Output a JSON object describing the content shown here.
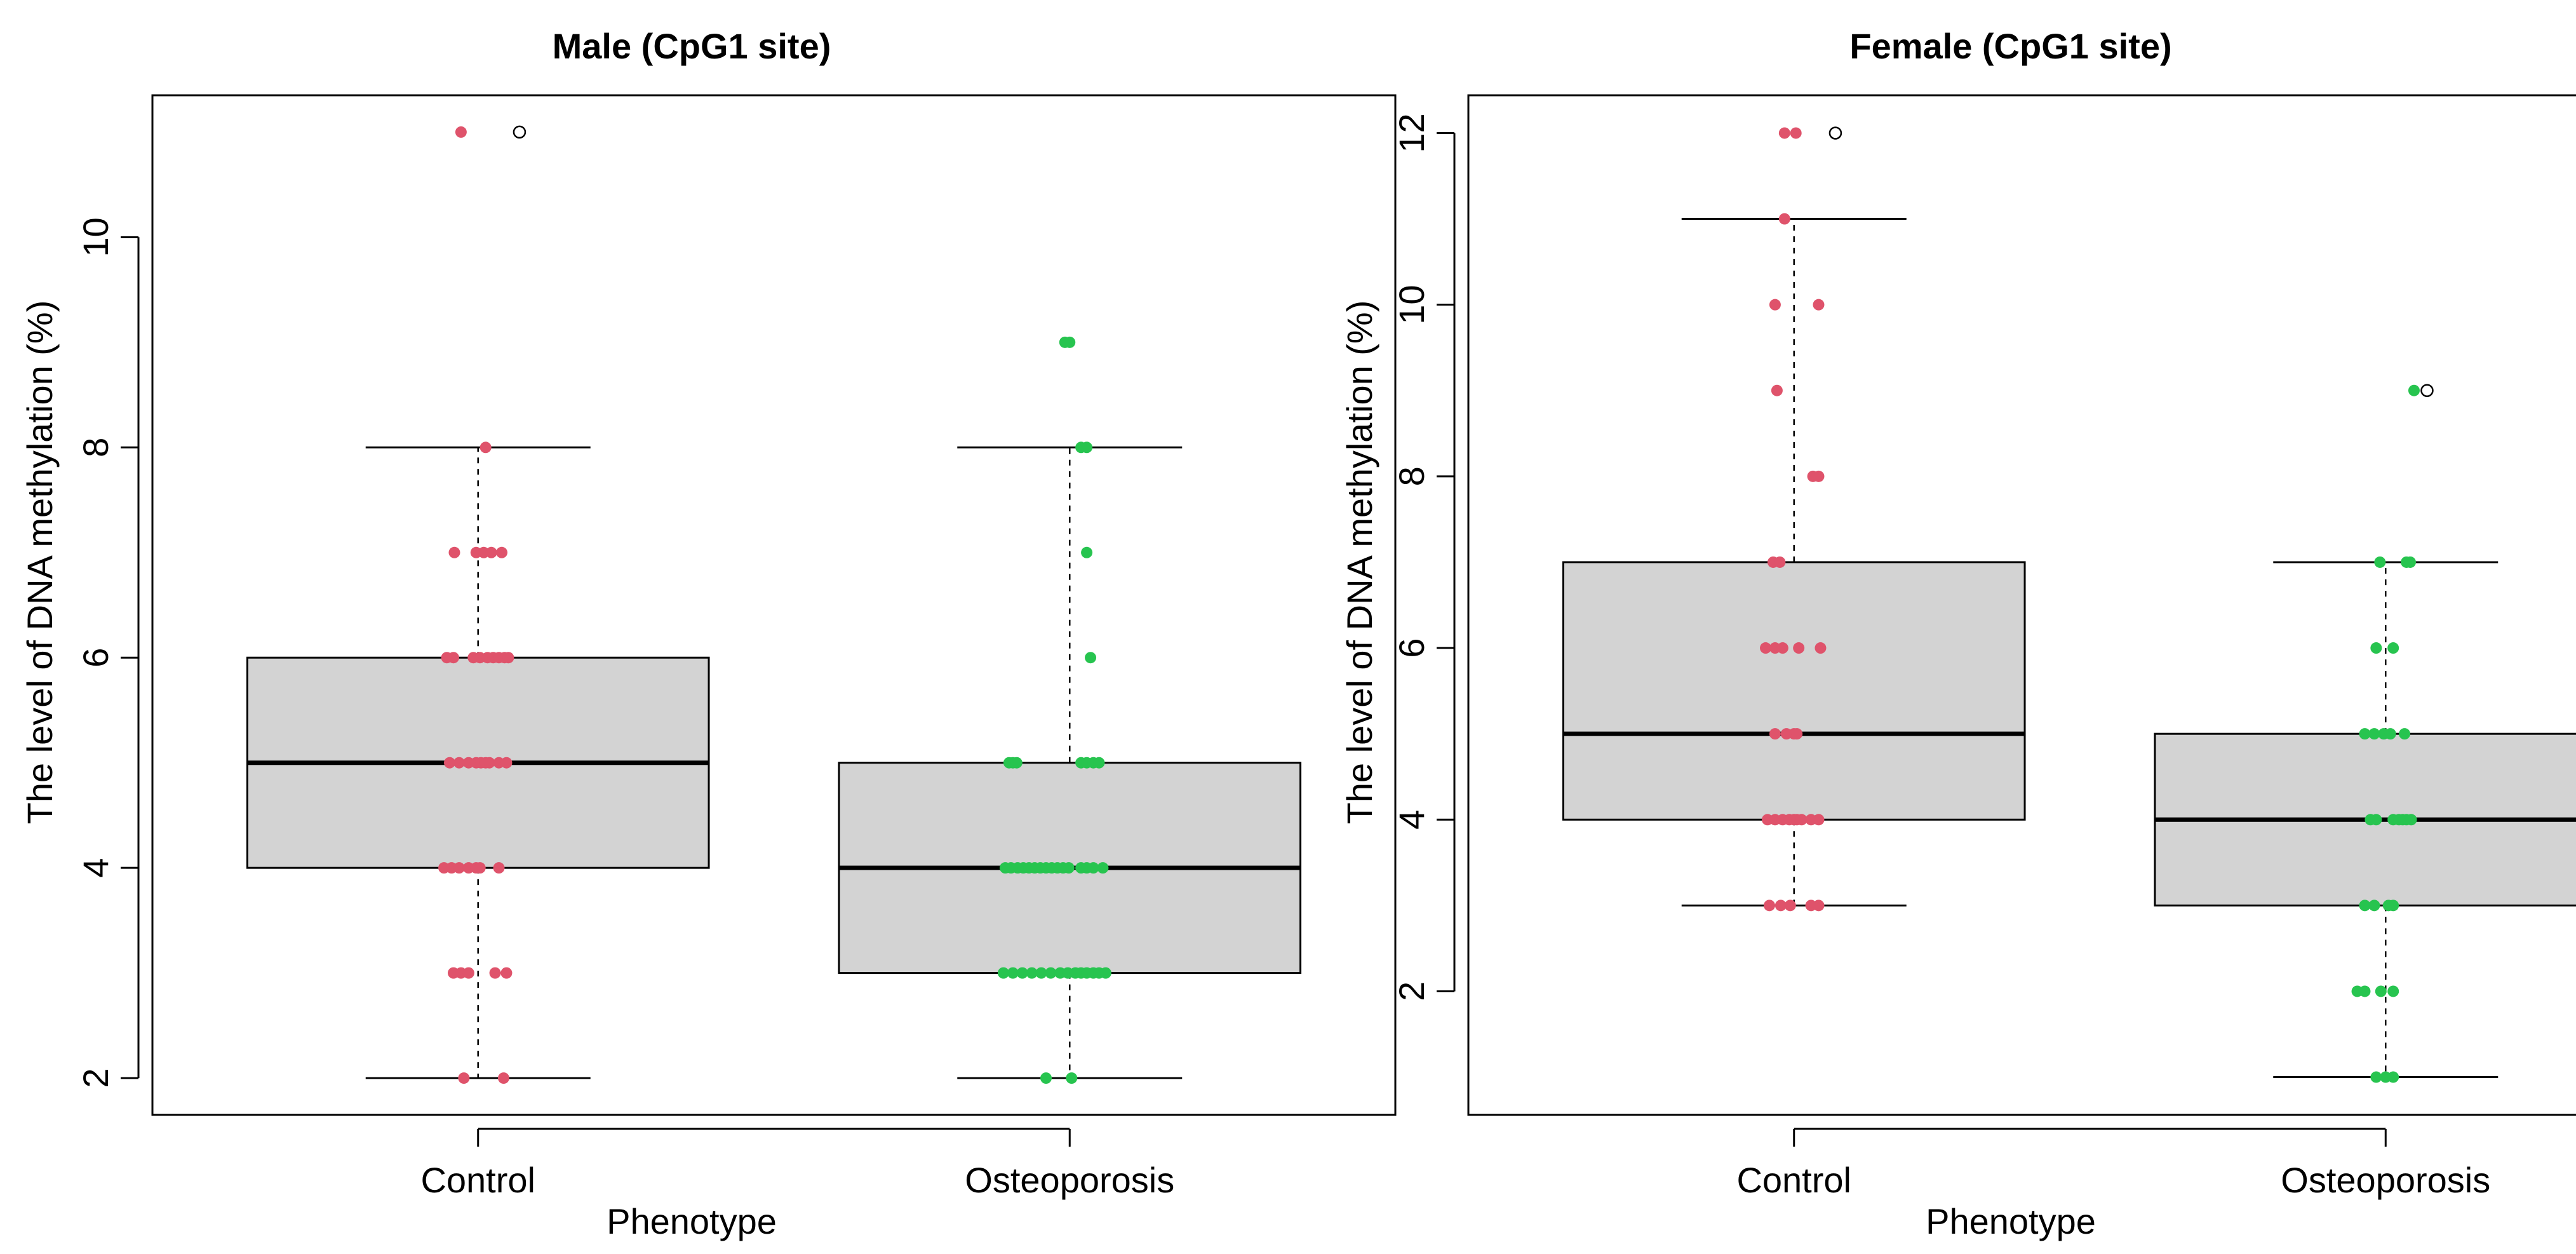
{
  "figure": {
    "background": "#ffffff"
  },
  "colors": {
    "control": "#df536b",
    "osteoporosis": "#27c44f",
    "box_fill": "#d3d3d3",
    "box_stroke": "#000000",
    "median": "#000000",
    "outlier_stroke": "#000000"
  },
  "chart_data": [
    {
      "type": "box",
      "title": "Male (CpG1 site)",
      "xlabel": "Phenotype",
      "ylabel": "The level of DNA methylation (%)",
      "categories": [
        "Control",
        "Osteoporosis"
      ],
      "ylim": [
        1.65,
        11.35
      ],
      "yticks": [
        2,
        4,
        6,
        8,
        10
      ],
      "boxes": [
        {
          "category": "Control",
          "q1": 4,
          "median": 5,
          "q3": 6,
          "whisker_low": 2,
          "whisker_high": 8,
          "outliers": [
            11
          ]
        },
        {
          "category": "Osteoporosis",
          "q1": 3,
          "median": 4,
          "q3": 5,
          "whisker_low": 2,
          "whisker_high": 8,
          "outliers": []
        }
      ],
      "points": [
        {
          "category": "Control",
          "values": [
            11,
            8,
            7,
            7,
            7,
            7,
            7,
            6,
            6,
            6,
            6,
            6,
            6,
            6,
            6,
            6,
            5,
            5,
            5,
            5,
            5,
            5,
            5,
            5,
            5,
            4,
            4,
            4,
            4,
            4,
            4,
            4,
            3,
            3,
            3,
            3,
            3,
            2,
            2
          ],
          "offsets": [
            -0.18,
            0.08,
            -0.25,
            -0.02,
            0.06,
            0.14,
            0.25,
            -0.33,
            -0.26,
            -0.05,
            0.02,
            0.1,
            0.16,
            0.22,
            0.28,
            0.32,
            -0.3,
            -0.2,
            -0.1,
            -0.02,
            0.03,
            0.08,
            0.12,
            0.22,
            0.3,
            -0.36,
            -0.28,
            -0.2,
            -0.1,
            -0.02,
            0.02,
            0.22,
            -0.26,
            -0.18,
            -0.1,
            0.18,
            0.3,
            -0.15,
            0.27
          ]
        },
        {
          "category": "Osteoporosis",
          "values": [
            9,
            9,
            8,
            8,
            7,
            6,
            5,
            5,
            5,
            5,
            5,
            5,
            5,
            4,
            4,
            4,
            4,
            4,
            4,
            4,
            4,
            4,
            4,
            4,
            4,
            4,
            4,
            4,
            4,
            3,
            3,
            3,
            3,
            3,
            3,
            3,
            3,
            3,
            3,
            3,
            3,
            3,
            3,
            2,
            2
          ],
          "offsets": [
            -0.05,
            0.0,
            0.12,
            0.18,
            0.18,
            0.22,
            -0.64,
            -0.6,
            -0.56,
            0.12,
            0.18,
            0.25,
            0.31,
            -0.68,
            -0.62,
            -0.55,
            -0.49,
            -0.43,
            -0.37,
            -0.31,
            -0.25,
            -0.19,
            -0.13,
            -0.07,
            -0.01,
            0.12,
            0.18,
            0.25,
            0.35,
            -0.7,
            -0.6,
            -0.5,
            -0.4,
            -0.3,
            -0.2,
            -0.1,
            -0.02,
            0.06,
            0.12,
            0.18,
            0.25,
            0.31,
            0.38,
            -0.25,
            0.02
          ]
        }
      ]
    },
    {
      "type": "box",
      "title": "Female (CpG1 site)",
      "xlabel": "Phenotype",
      "ylabel": "The level of DNA methylation (%)",
      "categories": [
        "Control",
        "Osteoporosis"
      ],
      "ylim": [
        0.56,
        12.44
      ],
      "yticks": [
        2,
        4,
        6,
        8,
        10,
        12
      ],
      "boxes": [
        {
          "category": "Control",
          "q1": 4,
          "median": 5,
          "q3": 7,
          "whisker_low": 3,
          "whisker_high": 11,
          "outliers": [
            12
          ]
        },
        {
          "category": "Osteoporosis",
          "q1": 3,
          "median": 4,
          "q3": 5,
          "whisker_low": 1,
          "whisker_high": 7,
          "outliers": [
            9
          ]
        }
      ],
      "points": [
        {
          "category": "Control",
          "values": [
            12,
            12,
            11,
            10,
            10,
            9,
            8,
            8,
            7,
            7,
            6,
            6,
            6,
            6,
            6,
            5,
            5,
            5,
            5,
            4,
            4,
            4,
            4,
            4,
            4,
            4,
            4,
            4,
            3,
            3,
            3,
            3,
            3
          ],
          "offsets": [
            -0.1,
            0.02,
            -0.1,
            -0.2,
            0.26,
            -0.18,
            0.2,
            0.26,
            -0.22,
            -0.15,
            -0.3,
            -0.2,
            -0.12,
            0.05,
            0.28,
            -0.2,
            -0.08,
            0.0,
            0.03,
            -0.28,
            -0.2,
            -0.12,
            -0.05,
            0.0,
            0.03,
            0.08,
            0.18,
            0.26,
            -0.26,
            -0.14,
            -0.04,
            0.18,
            0.26
          ]
        },
        {
          "category": "Osteoporosis",
          "values": [
            9,
            7,
            7,
            7,
            6,
            6,
            5,
            5,
            5,
            5,
            5,
            4,
            4,
            4,
            4,
            4,
            4,
            4,
            3,
            3,
            3,
            3,
            2,
            2,
            2,
            2,
            1,
            1,
            1
          ],
          "offsets": [
            0.3,
            -0.06,
            0.22,
            0.26,
            -0.1,
            0.08,
            -0.22,
            -0.12,
            -0.02,
            0.05,
            0.2,
            -0.16,
            -0.1,
            0.08,
            0.14,
            0.18,
            0.22,
            0.27,
            -0.22,
            -0.12,
            0.03,
            0.08,
            -0.3,
            -0.22,
            -0.05,
            0.08,
            -0.1,
            0.0,
            0.08
          ]
        }
      ]
    }
  ]
}
